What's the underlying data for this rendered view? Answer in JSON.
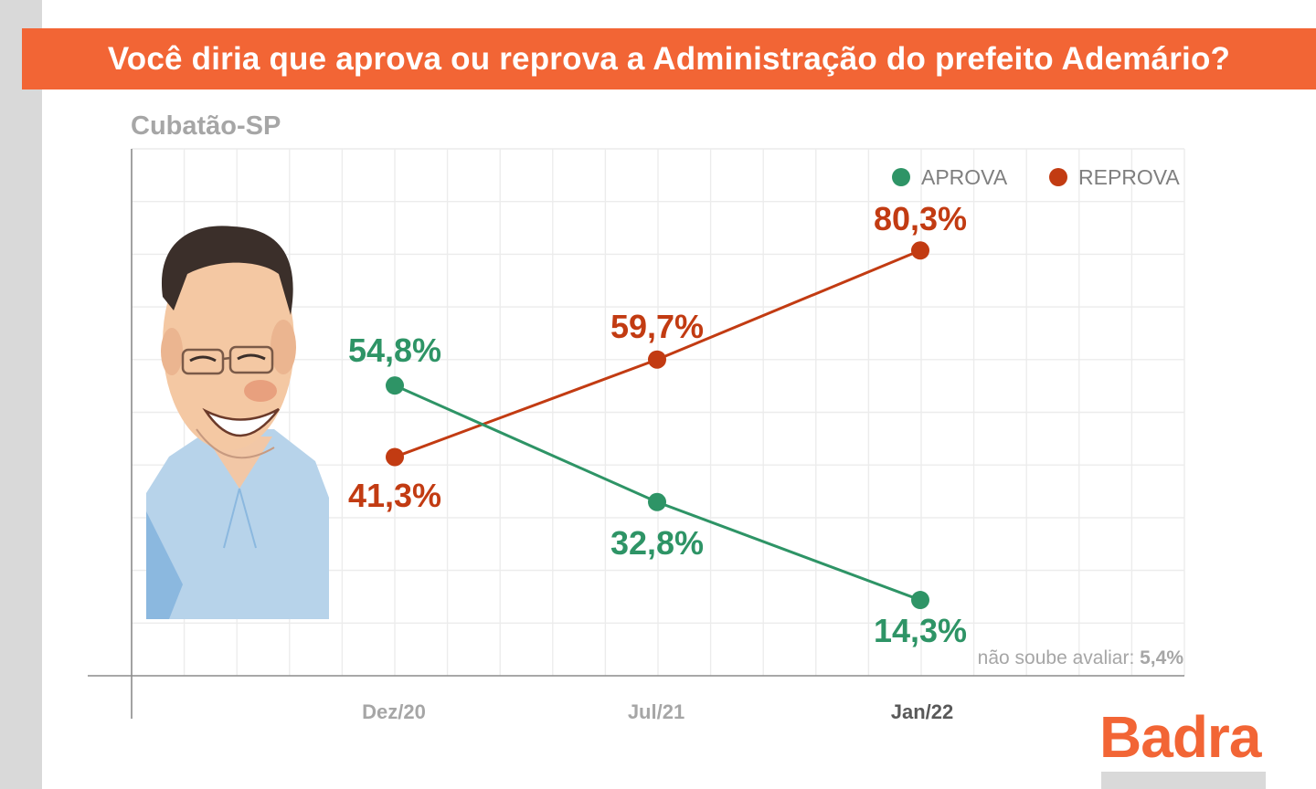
{
  "header": {
    "title": "Você diria que aprova ou reprova a Administração do prefeito Ademário?",
    "location": "Cubatão-SP"
  },
  "brand": {
    "name": "Badra",
    "color": "#f26535"
  },
  "colors": {
    "banner": "#f26535",
    "aprova": "#2e9466",
    "reprova": "#c23b12",
    "tick_active": "#595959",
    "tick_muted": "#a6a6a6"
  },
  "caricature": {
    "icon": "caricature-mayor-icon"
  },
  "chart_data": {
    "type": "line",
    "title": "Você diria que aprova ou reprova a Administração do prefeito Ademário?",
    "subtitle": "Cubatão-SP",
    "categories": [
      "Dez/20",
      "Jul/21",
      "Jan/22"
    ],
    "series": [
      {
        "name": "APROVA",
        "color": "#2e9466",
        "values": [
          54.8,
          32.8,
          14.3
        ],
        "labels": [
          "54,8%",
          "32,8%",
          "14,3%"
        ]
      },
      {
        "name": "REPROVA",
        "color": "#c23b12",
        "values": [
          41.3,
          59.7,
          80.3
        ],
        "labels": [
          "41,3%",
          "59,7%",
          "80,3%"
        ]
      }
    ],
    "legend": {
      "position": "top-right"
    },
    "note": {
      "label": "não soube avaliar:",
      "value": "5,4%"
    },
    "ylim": [
      0,
      100
    ],
    "grid": true
  }
}
